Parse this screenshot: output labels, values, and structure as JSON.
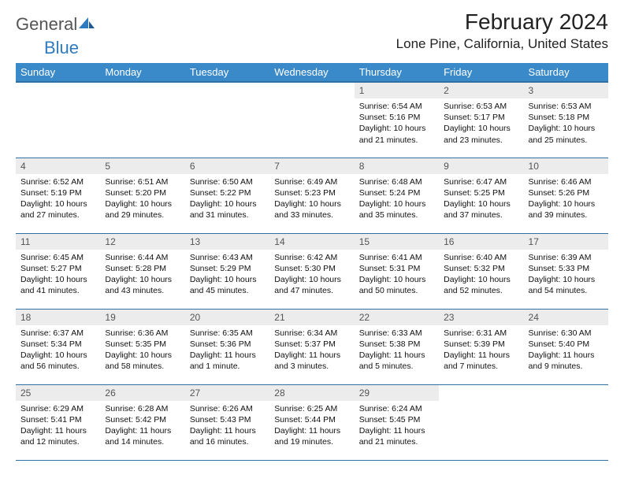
{
  "brand": {
    "word1": "General",
    "word2": "Blue",
    "color": "#2f7bbf"
  },
  "header": {
    "month_title": "February 2024",
    "location": "Lone Pine, California, United States"
  },
  "colors": {
    "header_bg": "#3a8ac9",
    "header_border": "#2f6fa3",
    "daynum_bg": "#ececec",
    "text": "#000000"
  },
  "weekdays": [
    "Sunday",
    "Monday",
    "Tuesday",
    "Wednesday",
    "Thursday",
    "Friday",
    "Saturday"
  ],
  "weeks": [
    [
      null,
      null,
      null,
      null,
      {
        "n": "1",
        "sr": "Sunrise: 6:54 AM",
        "ss": "Sunset: 5:16 PM",
        "dl": "Daylight: 10 hours and 21 minutes."
      },
      {
        "n": "2",
        "sr": "Sunrise: 6:53 AM",
        "ss": "Sunset: 5:17 PM",
        "dl": "Daylight: 10 hours and 23 minutes."
      },
      {
        "n": "3",
        "sr": "Sunrise: 6:53 AM",
        "ss": "Sunset: 5:18 PM",
        "dl": "Daylight: 10 hours and 25 minutes."
      }
    ],
    [
      {
        "n": "4",
        "sr": "Sunrise: 6:52 AM",
        "ss": "Sunset: 5:19 PM",
        "dl": "Daylight: 10 hours and 27 minutes."
      },
      {
        "n": "5",
        "sr": "Sunrise: 6:51 AM",
        "ss": "Sunset: 5:20 PM",
        "dl": "Daylight: 10 hours and 29 minutes."
      },
      {
        "n": "6",
        "sr": "Sunrise: 6:50 AM",
        "ss": "Sunset: 5:22 PM",
        "dl": "Daylight: 10 hours and 31 minutes."
      },
      {
        "n": "7",
        "sr": "Sunrise: 6:49 AM",
        "ss": "Sunset: 5:23 PM",
        "dl": "Daylight: 10 hours and 33 minutes."
      },
      {
        "n": "8",
        "sr": "Sunrise: 6:48 AM",
        "ss": "Sunset: 5:24 PM",
        "dl": "Daylight: 10 hours and 35 minutes."
      },
      {
        "n": "9",
        "sr": "Sunrise: 6:47 AM",
        "ss": "Sunset: 5:25 PM",
        "dl": "Daylight: 10 hours and 37 minutes."
      },
      {
        "n": "10",
        "sr": "Sunrise: 6:46 AM",
        "ss": "Sunset: 5:26 PM",
        "dl": "Daylight: 10 hours and 39 minutes."
      }
    ],
    [
      {
        "n": "11",
        "sr": "Sunrise: 6:45 AM",
        "ss": "Sunset: 5:27 PM",
        "dl": "Daylight: 10 hours and 41 minutes."
      },
      {
        "n": "12",
        "sr": "Sunrise: 6:44 AM",
        "ss": "Sunset: 5:28 PM",
        "dl": "Daylight: 10 hours and 43 minutes."
      },
      {
        "n": "13",
        "sr": "Sunrise: 6:43 AM",
        "ss": "Sunset: 5:29 PM",
        "dl": "Daylight: 10 hours and 45 minutes."
      },
      {
        "n": "14",
        "sr": "Sunrise: 6:42 AM",
        "ss": "Sunset: 5:30 PM",
        "dl": "Daylight: 10 hours and 47 minutes."
      },
      {
        "n": "15",
        "sr": "Sunrise: 6:41 AM",
        "ss": "Sunset: 5:31 PM",
        "dl": "Daylight: 10 hours and 50 minutes."
      },
      {
        "n": "16",
        "sr": "Sunrise: 6:40 AM",
        "ss": "Sunset: 5:32 PM",
        "dl": "Daylight: 10 hours and 52 minutes."
      },
      {
        "n": "17",
        "sr": "Sunrise: 6:39 AM",
        "ss": "Sunset: 5:33 PM",
        "dl": "Daylight: 10 hours and 54 minutes."
      }
    ],
    [
      {
        "n": "18",
        "sr": "Sunrise: 6:37 AM",
        "ss": "Sunset: 5:34 PM",
        "dl": "Daylight: 10 hours and 56 minutes."
      },
      {
        "n": "19",
        "sr": "Sunrise: 6:36 AM",
        "ss": "Sunset: 5:35 PM",
        "dl": "Daylight: 10 hours and 58 minutes."
      },
      {
        "n": "20",
        "sr": "Sunrise: 6:35 AM",
        "ss": "Sunset: 5:36 PM",
        "dl": "Daylight: 11 hours and 1 minute."
      },
      {
        "n": "21",
        "sr": "Sunrise: 6:34 AM",
        "ss": "Sunset: 5:37 PM",
        "dl": "Daylight: 11 hours and 3 minutes."
      },
      {
        "n": "22",
        "sr": "Sunrise: 6:33 AM",
        "ss": "Sunset: 5:38 PM",
        "dl": "Daylight: 11 hours and 5 minutes."
      },
      {
        "n": "23",
        "sr": "Sunrise: 6:31 AM",
        "ss": "Sunset: 5:39 PM",
        "dl": "Daylight: 11 hours and 7 minutes."
      },
      {
        "n": "24",
        "sr": "Sunrise: 6:30 AM",
        "ss": "Sunset: 5:40 PM",
        "dl": "Daylight: 11 hours and 9 minutes."
      }
    ],
    [
      {
        "n": "25",
        "sr": "Sunrise: 6:29 AM",
        "ss": "Sunset: 5:41 PM",
        "dl": "Daylight: 11 hours and 12 minutes."
      },
      {
        "n": "26",
        "sr": "Sunrise: 6:28 AM",
        "ss": "Sunset: 5:42 PM",
        "dl": "Daylight: 11 hours and 14 minutes."
      },
      {
        "n": "27",
        "sr": "Sunrise: 6:26 AM",
        "ss": "Sunset: 5:43 PM",
        "dl": "Daylight: 11 hours and 16 minutes."
      },
      {
        "n": "28",
        "sr": "Sunrise: 6:25 AM",
        "ss": "Sunset: 5:44 PM",
        "dl": "Daylight: 11 hours and 19 minutes."
      },
      {
        "n": "29",
        "sr": "Sunrise: 6:24 AM",
        "ss": "Sunset: 5:45 PM",
        "dl": "Daylight: 11 hours and 21 minutes."
      },
      null,
      null
    ]
  ]
}
